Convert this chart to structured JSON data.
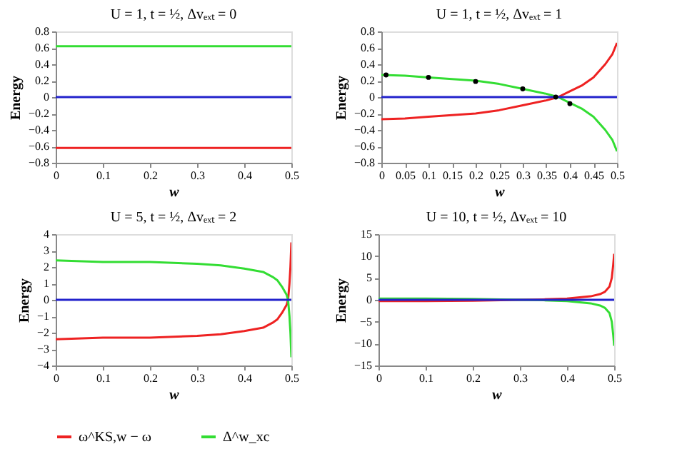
{
  "chart_data": [
    {
      "type": "line",
      "title": "U = 1, t = ½, Δvₑₓₜ = 0",
      "xlabel": "w",
      "ylabel": "Energy",
      "xlim": [
        0,
        0.5
      ],
      "xticks": [
        0,
        0.1,
        0.2,
        0.3,
        0.4,
        0.5
      ],
      "ylim": [
        -0.8,
        0.8
      ],
      "yticks": [
        -0.8,
        -0.6,
        -0.4,
        -0.2,
        0,
        0.2,
        0.4,
        0.6,
        0.8
      ],
      "grid": false,
      "legend": false,
      "line_style": "solid",
      "series": [
        {
          "color": "#ee2222",
          "x": [
            0,
            0.5
          ],
          "values": [
            -0.62,
            -0.62
          ]
        },
        {
          "color": "#33dd33",
          "x": [
            0,
            0.5
          ],
          "values": [
            0.62,
            0.62
          ]
        },
        {
          "color": "#2222cc",
          "x": [
            0,
            0.5
          ],
          "values": [
            0,
            0
          ]
        }
      ]
    },
    {
      "type": "line",
      "title": "U = 1, t = ½, Δvₑₓₜ = 1",
      "xlabel": "w",
      "ylabel": "Energy",
      "xlim": [
        0,
        0.5
      ],
      "xticks": [
        0,
        0.05,
        0.1,
        0.15,
        0.2,
        0.25,
        0.3,
        0.35,
        0.4,
        0.45,
        0.5
      ],
      "ylim": [
        -0.8,
        0.8
      ],
      "yticks": [
        -0.8,
        -0.6,
        -0.4,
        -0.2,
        0,
        0.2,
        0.4,
        0.6,
        0.8
      ],
      "grid": false,
      "legend": false,
      "line_style": "solid",
      "series": [
        {
          "color": "#ee2222",
          "x": [
            0,
            0.05,
            0.1,
            0.15,
            0.2,
            0.25,
            0.3,
            0.35,
            0.375,
            0.4,
            0.425,
            0.45,
            0.475,
            0.49,
            0.5
          ],
          "values": [
            -0.27,
            -0.26,
            -0.24,
            -0.22,
            -0.2,
            -0.16,
            -0.1,
            -0.04,
            0,
            0.07,
            0.14,
            0.24,
            0.4,
            0.52,
            0.66
          ]
        },
        {
          "color": "#33dd33",
          "x": [
            0,
            0.05,
            0.1,
            0.15,
            0.2,
            0.25,
            0.3,
            0.35,
            0.375,
            0.4,
            0.425,
            0.45,
            0.475,
            0.49,
            0.5
          ],
          "values": [
            0.27,
            0.26,
            0.24,
            0.22,
            0.2,
            0.16,
            0.1,
            0.04,
            0,
            -0.07,
            -0.14,
            -0.24,
            -0.4,
            -0.52,
            -0.66
          ]
        },
        {
          "color": "#2222cc",
          "x": [
            0,
            0.5
          ],
          "values": [
            0,
            0
          ]
        },
        {
          "type": "scatter",
          "color": "#000000",
          "marker": "circle",
          "x": [
            0.01,
            0.1,
            0.2,
            0.3,
            0.37,
            0.4
          ],
          "values": [
            0.27,
            0.24,
            0.19,
            0.1,
            0,
            -0.08
          ]
        }
      ]
    },
    {
      "type": "line",
      "title": "U = 5, t = ½, Δvₑₓₜ = 2",
      "xlabel": "w",
      "ylabel": "Energy",
      "xlim": [
        0,
        0.5
      ],
      "xticks": [
        0,
        0.1,
        0.2,
        0.3,
        0.4,
        0.5
      ],
      "ylim": [
        -4,
        4
      ],
      "yticks": [
        -4,
        -3,
        -2,
        -1,
        0,
        1,
        2,
        3,
        4
      ],
      "grid": false,
      "legend": "bottom",
      "line_style": "solid",
      "series": [
        {
          "name": "ω^KS,w − ω",
          "color": "#ee2222",
          "x": [
            0,
            0.1,
            0.2,
            0.3,
            0.35,
            0.4,
            0.44,
            0.46,
            0.47,
            0.48,
            0.49,
            0.493,
            0.496,
            0.498,
            0.5
          ],
          "values": [
            -2.4,
            -2.3,
            -2.3,
            -2.2,
            -2.1,
            -1.9,
            -1.7,
            -1.4,
            -1.2,
            -0.8,
            -0.3,
            0,
            1,
            2,
            3.5
          ]
        },
        {
          "name": "Δ^w_xc",
          "color": "#33dd33",
          "x": [
            0,
            0.1,
            0.2,
            0.3,
            0.35,
            0.4,
            0.44,
            0.46,
            0.47,
            0.48,
            0.49,
            0.493,
            0.496,
            0.498,
            0.5
          ],
          "values": [
            2.4,
            2.3,
            2.3,
            2.2,
            2.1,
            1.9,
            1.7,
            1.4,
            1.2,
            0.8,
            0.3,
            0,
            -1,
            -2,
            -3.5
          ]
        },
        {
          "color": "#2222cc",
          "x": [
            0,
            0.5
          ],
          "values": [
            0,
            0
          ]
        }
      ]
    },
    {
      "type": "line",
      "title": "U = 10, t = ½, Δvₑₓₜ = 10",
      "xlabel": "w",
      "ylabel": "Energy",
      "xlim": [
        0,
        0.5
      ],
      "xticks": [
        0,
        0.1,
        0.2,
        0.3,
        0.4,
        0.5
      ],
      "ylim": [
        -15,
        15
      ],
      "yticks": [
        -15,
        -10,
        -5,
        0,
        5,
        10,
        15
      ],
      "grid": false,
      "legend": false,
      "line_style": "solid",
      "series": [
        {
          "color": "#ee2222",
          "x": [
            0,
            0.1,
            0.2,
            0.3,
            0.35,
            0.4,
            0.45,
            0.47,
            0.48,
            0.49,
            0.495,
            0.498,
            0.5
          ],
          "values": [
            -0.3,
            -0.3,
            -0.2,
            0,
            0.1,
            0.3,
            0.8,
            1.3,
            1.8,
            3,
            5,
            8,
            10.5
          ]
        },
        {
          "color": "#33dd33",
          "x": [
            0,
            0.1,
            0.2,
            0.3,
            0.35,
            0.4,
            0.45,
            0.47,
            0.48,
            0.49,
            0.495,
            0.498,
            0.5
          ],
          "values": [
            0.3,
            0.3,
            0.2,
            0,
            -0.1,
            -0.3,
            -0.8,
            -1.3,
            -1.8,
            -3,
            -5,
            -8,
            -10.5
          ]
        },
        {
          "color": "#2222cc",
          "x": [
            0,
            0.5
          ],
          "values": [
            0,
            0
          ]
        }
      ]
    }
  ]
}
